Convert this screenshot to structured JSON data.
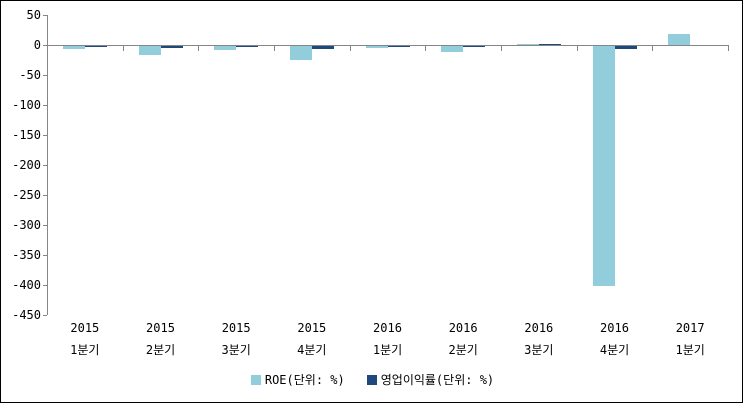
{
  "chart_data": {
    "type": "bar",
    "title": "",
    "xlabel": "",
    "ylabel": "",
    "categories": [
      "2015 1분기",
      "2015 2분기",
      "2015 3분기",
      "2015 4분기",
      "2016 1분기",
      "2016 2분기",
      "2016 3분기",
      "2016 4분기",
      "2017 1분기"
    ],
    "series": [
      {
        "name": "ROE(단위: %)",
        "color": "#92CDDC",
        "values": [
          -5,
          -15,
          -6,
          -24,
          -3,
          -10,
          2,
          -400,
          18
        ]
      },
      {
        "name": "영업이익률(단위: %)",
        "color": "#1F497D",
        "values": [
          -2,
          -4,
          -2,
          -5,
          -1,
          -1,
          1,
          -5,
          0
        ]
      }
    ],
    "ylim": [
      -450,
      50
    ],
    "yticks": [
      50,
      0,
      -50,
      -100,
      -150,
      -200,
      -250,
      -300,
      -350,
      -400,
      -450
    ],
    "grid": false,
    "legend_position": "bottom",
    "axis_color": "#868686",
    "label_color": "#000000"
  }
}
